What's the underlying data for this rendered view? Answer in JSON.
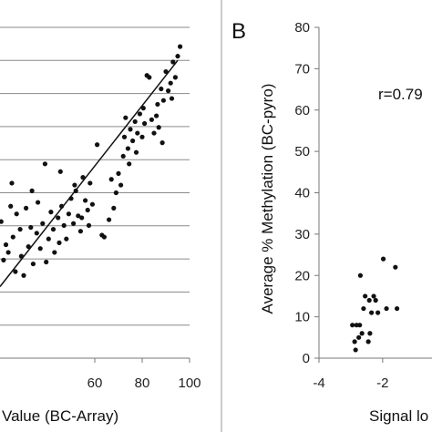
{
  "chart_data": [
    {
      "type": "scatter",
      "title": "",
      "xlabel": "Value (BC-Array)",
      "ylabel": "",
      "xlim": [
        20,
        100
      ],
      "ylim": [
        5,
        91
      ],
      "x_ticks": [
        "60",
        "80",
        "100"
      ],
      "grid": "horizontal",
      "trendline": {
        "x": [
          20,
          95
        ],
        "y": [
          23.6,
          82.4
        ]
      },
      "points": [
        {
          "x": 20.5,
          "y": 40.5
        },
        {
          "x": 21.5,
          "y": 30.5
        },
        {
          "x": 22.5,
          "y": 34.5
        },
        {
          "x": 23.5,
          "y": 32.5
        },
        {
          "x": 24.5,
          "y": 44.5
        },
        {
          "x": 25.5,
          "y": 36.5
        },
        {
          "x": 26.5,
          "y": 27.5
        },
        {
          "x": 27,
          "y": 42.5
        },
        {
          "x": 28.5,
          "y": 38.5
        },
        {
          "x": 29,
          "y": 31.5
        },
        {
          "x": 30,
          "y": 26.5
        },
        {
          "x": 31,
          "y": 44
        },
        {
          "x": 32,
          "y": 34
        },
        {
          "x": 33,
          "y": 39
        },
        {
          "x": 34,
          "y": 29.5
        },
        {
          "x": 35.5,
          "y": 37.5
        },
        {
          "x": 36,
          "y": 45.5
        },
        {
          "x": 37,
          "y": 33.5
        },
        {
          "x": 38,
          "y": 40
        },
        {
          "x": 39.5,
          "y": 30
        },
        {
          "x": 40.5,
          "y": 36
        },
        {
          "x": 41.5,
          "y": 43
        },
        {
          "x": 42.5,
          "y": 38.5
        },
        {
          "x": 43,
          "y": 32.5
        },
        {
          "x": 44.5,
          "y": 41.5
        },
        {
          "x": 45,
          "y": 35
        },
        {
          "x": 46,
          "y": 44.5
        },
        {
          "x": 47,
          "y": 39.5
        },
        {
          "x": 48,
          "y": 36
        },
        {
          "x": 49,
          "y": 42.5
        },
        {
          "x": 50,
          "y": 46.5
        },
        {
          "x": 51,
          "y": 40
        },
        {
          "x": 52,
          "y": 48.5
        },
        {
          "x": 53,
          "y": 42
        },
        {
          "x": 54,
          "y": 38
        },
        {
          "x": 55,
          "y": 52
        },
        {
          "x": 56,
          "y": 46
        },
        {
          "x": 57,
          "y": 43.5
        },
        {
          "x": 58,
          "y": 50.5
        },
        {
          "x": 59,
          "y": 45
        },
        {
          "x": 61,
          "y": 60.5
        },
        {
          "x": 63,
          "y": 37
        },
        {
          "x": 64,
          "y": 36.5
        },
        {
          "x": 66,
          "y": 41
        },
        {
          "x": 67,
          "y": 51.5
        },
        {
          "x": 68,
          "y": 44
        },
        {
          "x": 69,
          "y": 48
        },
        {
          "x": 70,
          "y": 53
        },
        {
          "x": 71,
          "y": 50
        },
        {
          "x": 72,
          "y": 57.5
        },
        {
          "x": 72.5,
          "y": 62.5
        },
        {
          "x": 73,
          "y": 67.5
        },
        {
          "x": 74,
          "y": 59.5
        },
        {
          "x": 74.5,
          "y": 55.5
        },
        {
          "x": 75,
          "y": 64.5
        },
        {
          "x": 76,
          "y": 61.5
        },
        {
          "x": 77,
          "y": 66.5
        },
        {
          "x": 77.5,
          "y": 58.5
        },
        {
          "x": 78,
          "y": 63.5
        },
        {
          "x": 79,
          "y": 68.5
        },
        {
          "x": 80,
          "y": 62.5
        },
        {
          "x": 80.5,
          "y": 70
        },
        {
          "x": 81,
          "y": 66
        },
        {
          "x": 82,
          "y": 78.5
        },
        {
          "x": 83,
          "y": 78
        },
        {
          "x": 84,
          "y": 67
        },
        {
          "x": 85,
          "y": 63.5
        },
        {
          "x": 86,
          "y": 68
        },
        {
          "x": 86.5,
          "y": 71
        },
        {
          "x": 87,
          "y": 65
        },
        {
          "x": 88,
          "y": 75
        },
        {
          "x": 88.5,
          "y": 61
        },
        {
          "x": 89,
          "y": 72
        },
        {
          "x": 90,
          "y": 79.5
        },
        {
          "x": 91,
          "y": 74.5
        },
        {
          "x": 92,
          "y": 76.5
        },
        {
          "x": 92.5,
          "y": 72.5
        },
        {
          "x": 93,
          "y": 82
        },
        {
          "x": 94,
          "y": 78
        },
        {
          "x": 95,
          "y": 83.5
        },
        {
          "x": 96,
          "y": 86
        },
        {
          "x": 57.5,
          "y": 39.5
        },
        {
          "x": 54.5,
          "y": 41.5
        },
        {
          "x": 25,
          "y": 50.5
        },
        {
          "x": 33.5,
          "y": 48.5
        },
        {
          "x": 39,
          "y": 55.5
        },
        {
          "x": 45.5,
          "y": 53.5
        },
        {
          "x": 51.5,
          "y": 50
        }
      ]
    },
    {
      "type": "scatter",
      "title": "",
      "panel_label": "B",
      "xlabel": "Signal lo",
      "ylabel": "Average % Methylation (BC-pyro)",
      "xlim": [
        -4,
        -0.45
      ],
      "ylim": [
        0,
        80
      ],
      "x_ticks": [
        "-4",
        "-2"
      ],
      "y_ticks": [
        "0",
        "10",
        "20",
        "30",
        "40",
        "50",
        "60",
        "70",
        "80"
      ],
      "annotation": "r=0.79",
      "points": [
        {
          "x": -2.95,
          "y": 8
        },
        {
          "x": -2.88,
          "y": 4
        },
        {
          "x": -2.85,
          "y": 2
        },
        {
          "x": -2.82,
          "y": 8
        },
        {
          "x": -2.75,
          "y": 5
        },
        {
          "x": -2.72,
          "y": 8
        },
        {
          "x": -2.7,
          "y": 20
        },
        {
          "x": -2.65,
          "y": 6
        },
        {
          "x": -2.6,
          "y": 12
        },
        {
          "x": -2.55,
          "y": 15
        },
        {
          "x": -2.45,
          "y": 4
        },
        {
          "x": -2.42,
          "y": 14
        },
        {
          "x": -2.4,
          "y": 6
        },
        {
          "x": -2.35,
          "y": 11
        },
        {
          "x": -2.28,
          "y": 15
        },
        {
          "x": -2.22,
          "y": 14
        },
        {
          "x": -2.15,
          "y": 11
        },
        {
          "x": -1.98,
          "y": 24
        },
        {
          "x": -1.88,
          "y": 12
        },
        {
          "x": -1.6,
          "y": 22
        },
        {
          "x": -1.55,
          "y": 12
        }
      ]
    }
  ]
}
